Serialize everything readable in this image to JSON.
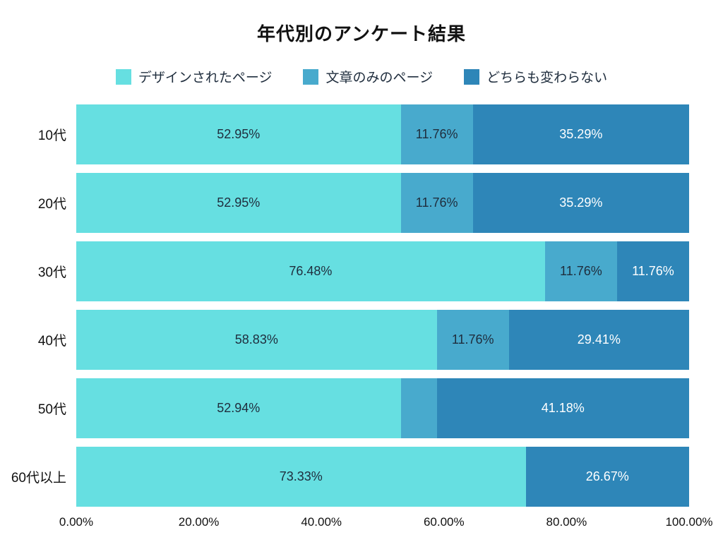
{
  "chart_data": {
    "type": "bar",
    "orientation": "horizontal",
    "stacked": true,
    "title": "年代別のアンケート結果",
    "legend_position": "top",
    "categories": [
      "10代",
      "20代",
      "30代",
      "40代",
      "50代",
      "60代以上"
    ],
    "series": [
      {
        "name": "デザインされたページ",
        "color": "#66DFE1",
        "label_color": "#1f2d3d",
        "values": [
          52.95,
          52.95,
          76.48,
          58.83,
          52.94,
          73.33
        ],
        "labels": [
          "52.95%",
          "52.95%",
          "76.48%",
          "58.83%",
          "52.94%",
          "73.33%"
        ]
      },
      {
        "name": "文章のみのページ",
        "color": "#48AACD",
        "label_color": "#1f2d3d",
        "values": [
          11.76,
          11.76,
          11.76,
          11.76,
          5.88,
          0
        ],
        "labels": [
          "11.76%",
          "11.76%",
          "11.76%",
          "11.76%",
          "",
          ""
        ]
      },
      {
        "name": "どちらも変わらない",
        "color": "#2E86B8",
        "label_color": "#ffffff",
        "values": [
          35.29,
          35.29,
          11.76,
          29.41,
          41.18,
          26.67
        ],
        "labels": [
          "35.29%",
          "35.29%",
          "11.76%",
          "29.41%",
          "41.18%",
          "26.67%"
        ]
      }
    ],
    "x_ticks": [
      "0.00%",
      "20.00%",
      "40.00%",
      "60.00%",
      "80.00%",
      "100.00%"
    ],
    "xlim": [
      0,
      100
    ]
  }
}
